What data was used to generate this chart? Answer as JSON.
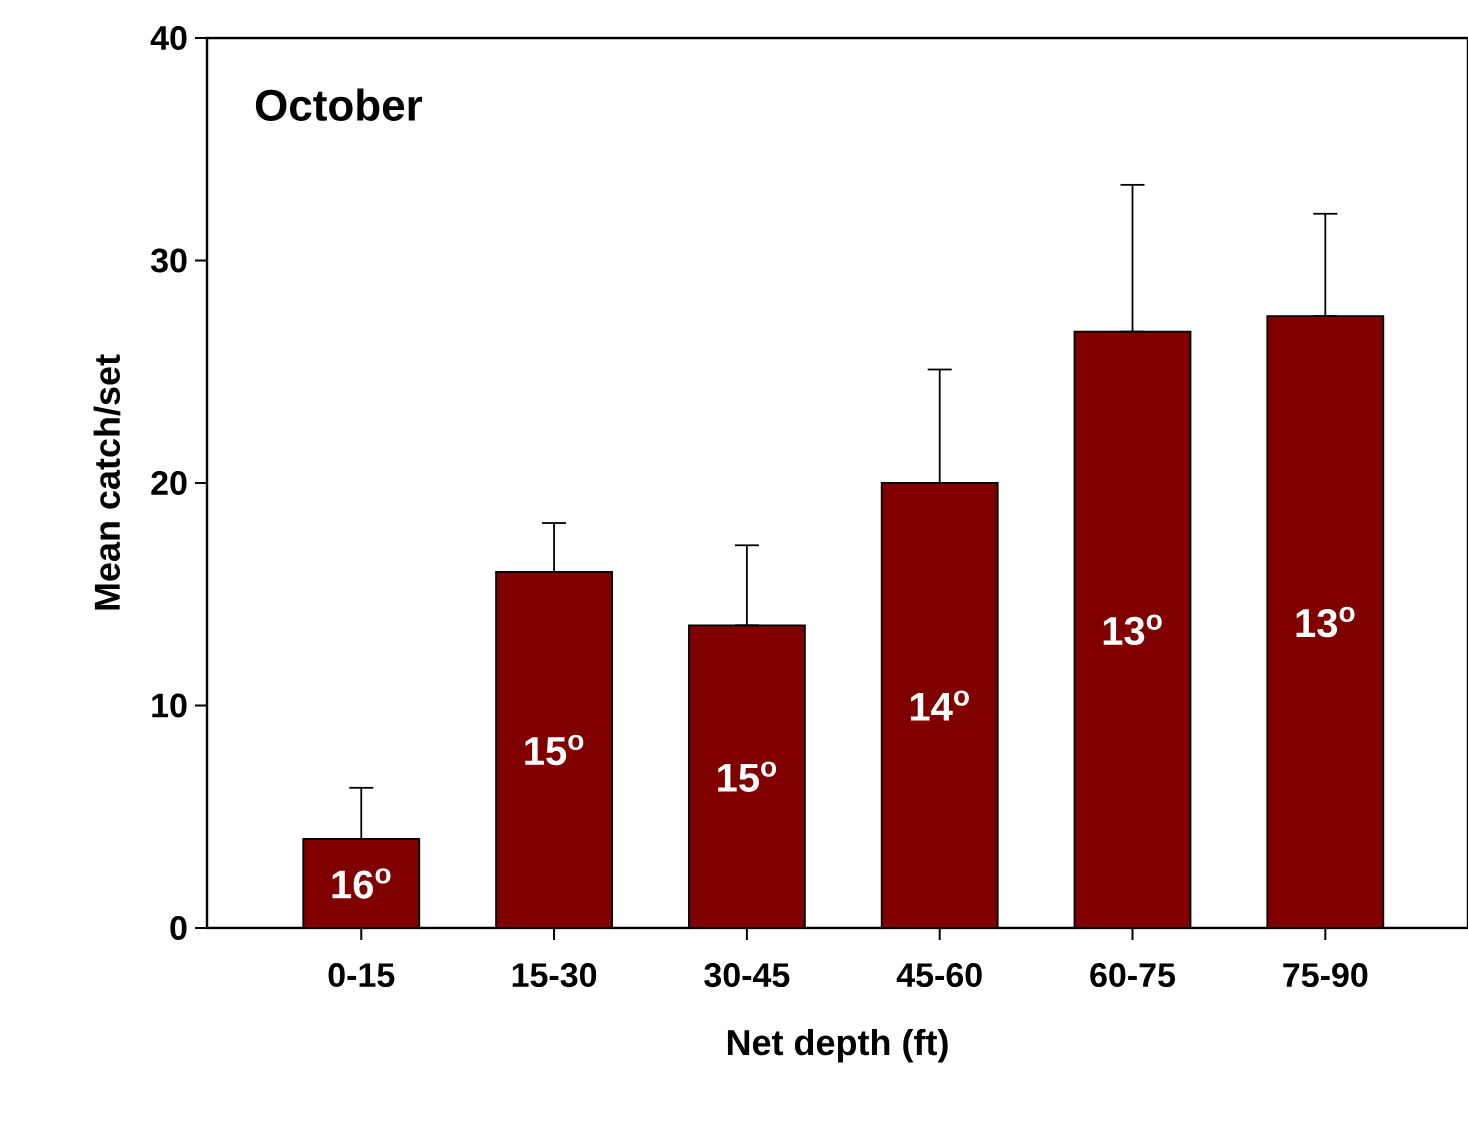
{
  "chart_data": {
    "type": "bar",
    "title": "October",
    "xlabel": "Net depth (ft)",
    "ylabel": "Mean catch/set",
    "categories": [
      "0-15",
      "15-30",
      "30-45",
      "45-60",
      "60-75",
      "75-90"
    ],
    "values": [
      4.0,
      16.0,
      13.6,
      20.0,
      26.8,
      27.5
    ],
    "errors": [
      [
        4.0,
        6.3
      ],
      [
        16.0,
        18.2
      ],
      [
        13.6,
        17.2
      ],
      [
        20.0,
        25.1
      ],
      [
        26.8,
        33.4
      ],
      [
        27.5,
        32.1
      ]
    ],
    "color": "#800000",
    "ylim": [
      0,
      40
    ],
    "yticks": [
      0,
      10,
      20,
      30,
      40
    ],
    "annotations": [
      "16$^{o}$",
      "15$^{o}$",
      "15$^{o}$",
      "14$^{o}$",
      "13$^{o}$",
      "13$^{o}$"
    ]
  }
}
